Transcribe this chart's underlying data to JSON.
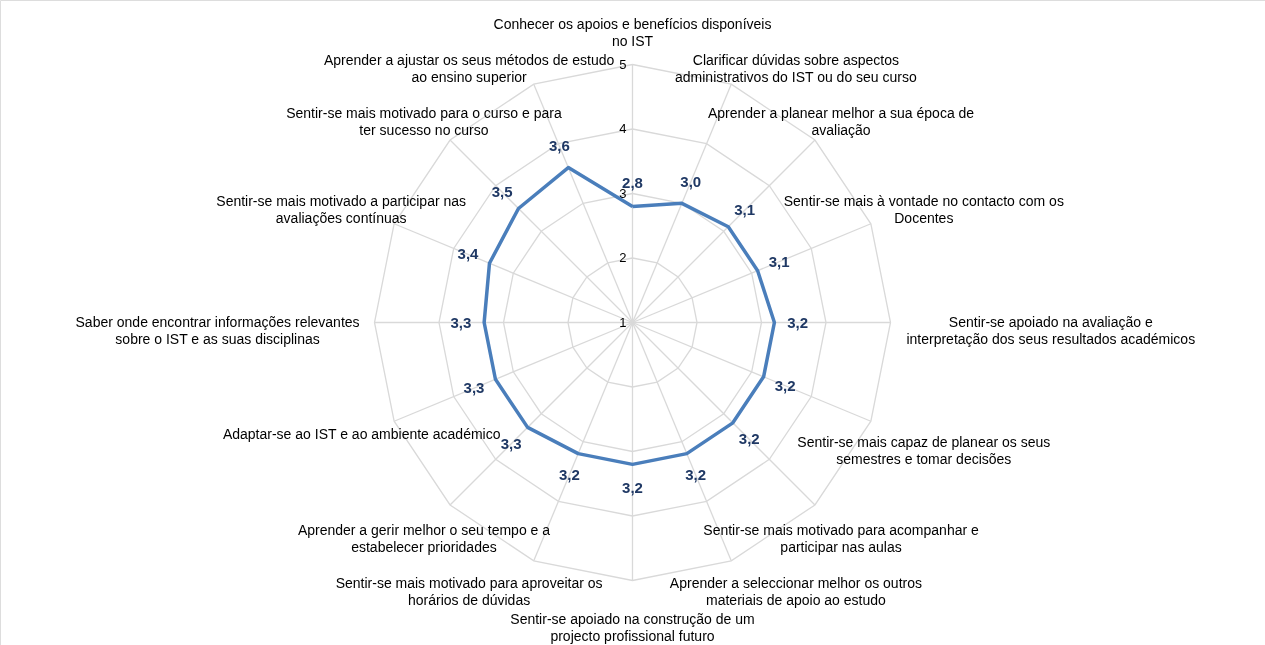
{
  "chart_data": {
    "type": "radar",
    "categories": [
      "Conhecer os apoios e benefícios disponíveis no IST",
      "Clarificar dúvidas sobre aspectos administrativos do IST ou do seu curso",
      "Aprender a planear melhor a sua época de avaliação",
      "Sentir-se mais à vontade no contacto com os Docentes",
      "Sentir-se apoiado na avaliação e interpretação dos seus resultados académicos",
      "Sentir-se mais capaz de planear os seus semestres e tomar decisões",
      "Sentir-se mais motivado para acompanhar e participar nas aulas",
      "Aprender a seleccionar melhor os outros materiais de apoio ao estudo",
      "Sentir-se apoiado na construção de um projecto profissional futuro",
      "Sentir-se mais motivado para aproveitar os horários de dúvidas",
      "Aprender a gerir melhor o seu tempo e a estabelecer prioridades",
      "Adaptar-se ao IST e ao ambiente académico",
      "Saber onde encontrar informações relevantes sobre o IST e as suas disciplinas",
      "Sentir-se mais motivado a participar nas avaliações contínuas",
      "Sentir-se mais motivado para o curso e para ter sucesso no curso",
      "Aprender a ajustar os seus métodos de estudo ao ensino superior"
    ],
    "series": [
      {
        "color": "#4a7ebb",
        "values": [
          2.8,
          3.0,
          3.1,
          3.1,
          3.2,
          3.2,
          3.2,
          3.2,
          3.2,
          3.2,
          3.3,
          3.3,
          3.3,
          3.4,
          3.5,
          3.6
        ],
        "value_labels": [
          "2,8",
          "3,0",
          "3,1",
          "3,1",
          "3,2",
          "3,2",
          "3,2",
          "3,2",
          "3,2",
          "3,2",
          "3,3",
          "3,3",
          "3,3",
          "3,4",
          "3,5",
          "3,6"
        ]
      }
    ],
    "ylim": [
      1,
      5
    ],
    "yticks": [
      1,
      2,
      3,
      4,
      5
    ],
    "grid": true
  }
}
